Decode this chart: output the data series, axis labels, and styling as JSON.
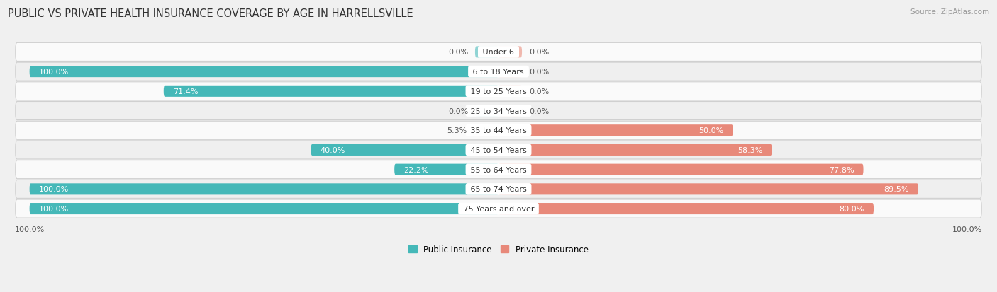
{
  "title": "PUBLIC VS PRIVATE HEALTH INSURANCE COVERAGE BY AGE IN HARRELLSVILLE",
  "source": "Source: ZipAtlas.com",
  "categories": [
    "Under 6",
    "6 to 18 Years",
    "19 to 25 Years",
    "25 to 34 Years",
    "35 to 44 Years",
    "45 to 54 Years",
    "55 to 64 Years",
    "65 to 74 Years",
    "75 Years and over"
  ],
  "public_values": [
    0.0,
    100.0,
    71.4,
    0.0,
    5.3,
    40.0,
    22.2,
    100.0,
    100.0
  ],
  "private_values": [
    0.0,
    0.0,
    0.0,
    0.0,
    50.0,
    58.3,
    77.8,
    89.5,
    80.0
  ],
  "public_color": "#45b8b8",
  "private_color": "#e8897a",
  "public_stub_color": "#90d4d4",
  "private_stub_color": "#f0b8ae",
  "background_color": "#f0f0f0",
  "row_bg_color": "#fafafa",
  "row_alt_bg_color": "#efefef",
  "title_fontsize": 10.5,
  "label_fontsize": 8,
  "value_fontsize": 8,
  "tick_fontsize": 8,
  "legend_fontsize": 8.5,
  "max_value": 100.0,
  "stub_size": 5.0
}
